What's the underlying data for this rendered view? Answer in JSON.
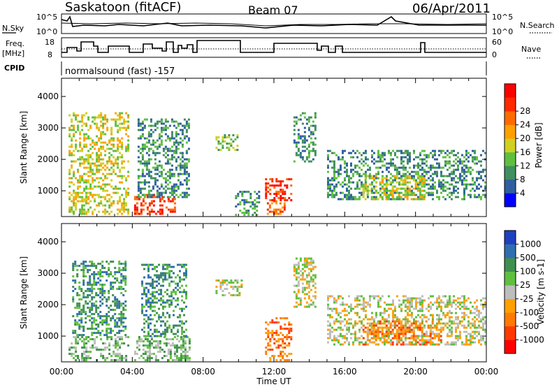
{
  "header": {
    "station": "Saskatoon (fitACF)",
    "beam": "Beam 07",
    "date": "06/Apr/2011"
  },
  "status_panel": {
    "nsky_label": "N.Sky",
    "nsearch_label": "N.Search",
    "noise_ticks": [
      "10^5",
      "10^0"
    ],
    "freq_label": "Freq.",
    "freq_unit": "[MHz]",
    "freq_ticks": [
      "18",
      "8"
    ],
    "nave_label": "Nave",
    "nave_ticks": [
      "60",
      "0"
    ],
    "cpid_label": "CPID",
    "cpid_text": "normalsound (fast) -157"
  },
  "colors": {
    "power": [
      "#0000ff",
      "#2f5f9f",
      "#3f8f5f",
      "#5fbf3f",
      "#cfd020",
      "#ffa000",
      "#ff6a00",
      "#ff2a00",
      "#ff0000"
    ],
    "velocity": [
      "#1f3fbf",
      "#2f6faf",
      "#3f8f4f",
      "#5fbf3f",
      "#bdbdbd",
      "#ffa000",
      "#ff7a00",
      "#ff3a00",
      "#ff0000"
    ]
  },
  "chart_data": [
    {
      "type": "heatmap",
      "title": "Power",
      "ylabel": "Slant Range [km]",
      "xlabel": "Time UT",
      "x_ticks": [
        "00:00",
        "04:00",
        "08:00",
        "12:00",
        "16:00",
        "20:00",
        "00:00"
      ],
      "y_ticks": [
        "1000",
        "2000",
        "3000",
        "4000"
      ],
      "ylim": [
        180,
        4580
      ],
      "xlim_hours": [
        0,
        24
      ],
      "colorbar": {
        "label": "Power [dB]",
        "ticks": [
          "4",
          "8",
          "12",
          "16",
          "20",
          "24",
          "28"
        ]
      },
      "echo_regions": [
        {
          "t0": 0.4,
          "t1": 3.8,
          "r0": 250,
          "r1": 3500,
          "level": 4
        },
        {
          "t0": 4.1,
          "t1": 6.4,
          "r0": 250,
          "r1": 900,
          "level": 7
        },
        {
          "t0": 4.3,
          "t1": 7.2,
          "r0": 800,
          "r1": 3300,
          "level": 2
        },
        {
          "t0": 8.7,
          "t1": 10.0,
          "r0": 2300,
          "r1": 2800,
          "level": 3
        },
        {
          "t0": 9.8,
          "t1": 11.2,
          "r0": 250,
          "r1": 1000,
          "level": 2
        },
        {
          "t0": 11.5,
          "t1": 13.0,
          "r0": 700,
          "r1": 1400,
          "level": 7
        },
        {
          "t0": 11.6,
          "t1": 12.6,
          "r0": 250,
          "r1": 700,
          "level": 6
        },
        {
          "t0": 13.1,
          "t1": 14.3,
          "r0": 1900,
          "r1": 3500,
          "level": 2
        },
        {
          "t0": 15.0,
          "t1": 23.9,
          "r0": 700,
          "r1": 2300,
          "level": 2
        },
        {
          "t0": 17.0,
          "t1": 20.5,
          "r0": 700,
          "r1": 1500,
          "level": 4
        }
      ]
    },
    {
      "type": "heatmap",
      "title": "Velocity",
      "ylabel": "Slant Range [km]",
      "xlabel": "Time UT",
      "x_ticks": [
        "00:00",
        "04:00",
        "08:00",
        "12:00",
        "16:00",
        "20:00",
        "00:00"
      ],
      "y_ticks": [
        "1000",
        "2000",
        "3000",
        "4000"
      ],
      "ylim": [
        180,
        4580
      ],
      "xlim_hours": [
        0,
        24
      ],
      "colorbar": {
        "label": "Velocity [m s-1]",
        "ticks": [
          "1000",
          "500",
          "100",
          "25",
          "-25",
          "-100",
          "-500",
          "-1000"
        ]
      },
      "echo_regions": [
        {
          "t0": 0.4,
          "t1": 3.8,
          "r0": 250,
          "r1": 1000,
          "level": 3
        },
        {
          "t0": 0.6,
          "t1": 3.6,
          "r0": 1000,
          "r1": 3400,
          "level": 2
        },
        {
          "t0": 4.1,
          "t1": 7.2,
          "r0": 250,
          "r1": 1000,
          "level": 3
        },
        {
          "t0": 4.5,
          "t1": 7.0,
          "r0": 1000,
          "r1": 3300,
          "level": 2
        },
        {
          "t0": 8.7,
          "t1": 10.2,
          "r0": 2300,
          "r1": 2800,
          "level": 4
        },
        {
          "t0": 11.5,
          "t1": 13.0,
          "r0": 250,
          "r1": 1600,
          "level": 6
        },
        {
          "t0": 13.1,
          "t1": 14.3,
          "r0": 1900,
          "r1": 3500,
          "level": 4
        },
        {
          "t0": 15.0,
          "t1": 23.9,
          "r0": 700,
          "r1": 2300,
          "level": 4
        },
        {
          "t0": 17.0,
          "t1": 21.5,
          "r0": 700,
          "r1": 1500,
          "level": 6
        }
      ]
    }
  ]
}
